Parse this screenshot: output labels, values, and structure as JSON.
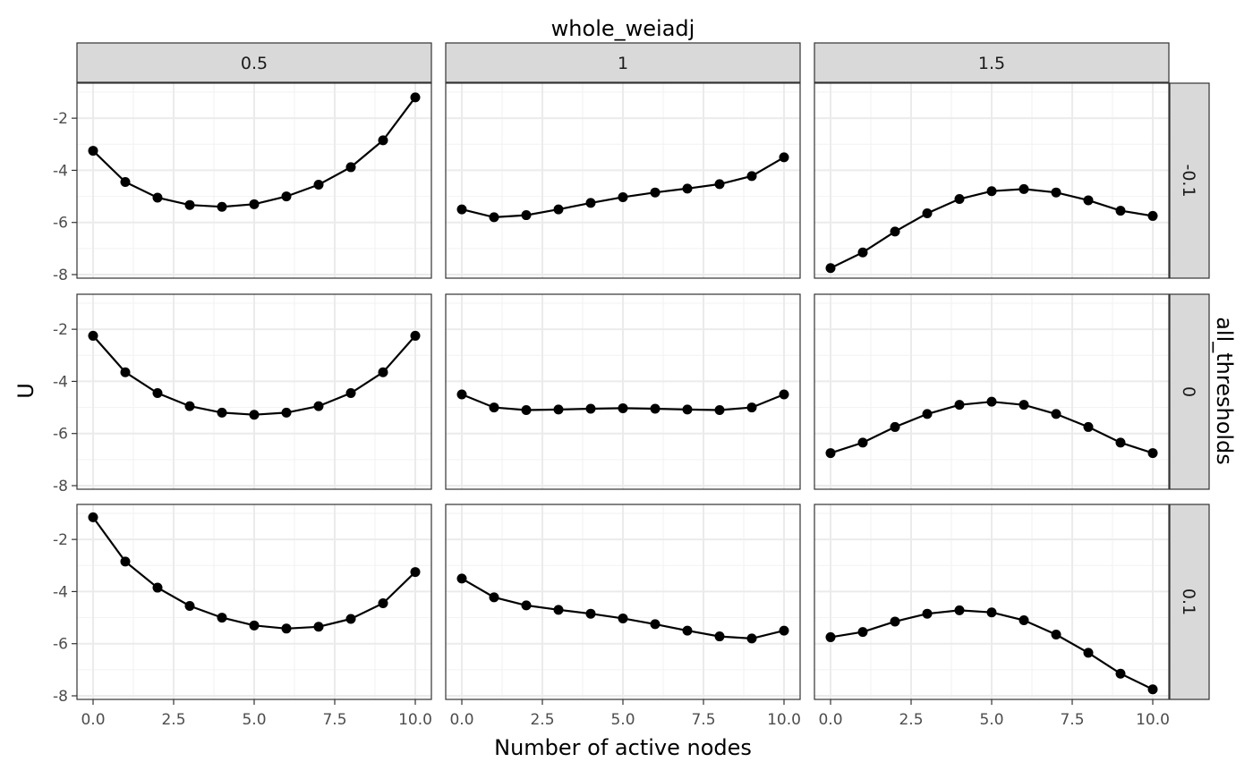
{
  "chart_data": {
    "type": "line",
    "facet_title_top": "whole_weiadj",
    "facet_title_right": "all_thresholds",
    "xlabel": "Number of active nodes",
    "ylabel": "U",
    "xlim": [
      0,
      10
    ],
    "ylim": [
      -8,
      -1
    ],
    "x_ticks": [
      0,
      2.5,
      5,
      7.5,
      10
    ],
    "x_tick_labels": [
      "0.0",
      "2.5",
      "5.0",
      "7.5",
      "10.0"
    ],
    "y_ticks": [
      -8,
      -6,
      -4,
      -2
    ],
    "y_tick_labels": [
      "-8",
      "-6",
      "-4",
      "-2"
    ],
    "grid": true,
    "columns": [
      "0.5",
      "1",
      "1.5"
    ],
    "rows": [
      "-0.1",
      "0",
      "0.1"
    ],
    "x": [
      0,
      1,
      2,
      3,
      4,
      5,
      6,
      7,
      8,
      9,
      10
    ],
    "panels": [
      {
        "row": "-0.1",
        "col": "0.5",
        "values": [
          -3.25,
          -4.45,
          -5.05,
          -5.33,
          -5.4,
          -5.3,
          -5.0,
          -4.55,
          -3.88,
          -2.85,
          -1.2
        ]
      },
      {
        "row": "-0.1",
        "col": "1",
        "values": [
          -5.5,
          -5.8,
          -5.72,
          -5.5,
          -5.25,
          -5.03,
          -4.85,
          -4.7,
          -4.53,
          -4.22,
          -3.5
        ]
      },
      {
        "row": "-0.1",
        "col": "1.5",
        "values": [
          -7.75,
          -7.15,
          -6.35,
          -5.65,
          -5.1,
          -4.8,
          -4.72,
          -4.85,
          -5.15,
          -5.55,
          -5.75
        ]
      },
      {
        "row": "0",
        "col": "0.5",
        "values": [
          -2.25,
          -3.65,
          -4.45,
          -4.95,
          -5.2,
          -5.28,
          -5.2,
          -4.95,
          -4.45,
          -3.65,
          -2.25
        ]
      },
      {
        "row": "0",
        "col": "1",
        "values": [
          -4.5,
          -5.0,
          -5.1,
          -5.08,
          -5.05,
          -5.03,
          -5.05,
          -5.08,
          -5.1,
          -5.0,
          -4.5
        ]
      },
      {
        "row": "0",
        "col": "1.5",
        "values": [
          -6.75,
          -6.35,
          -5.75,
          -5.25,
          -4.9,
          -4.78,
          -4.9,
          -5.25,
          -5.75,
          -6.35,
          -6.75
        ]
      },
      {
        "row": "0.1",
        "col": "0.5",
        "values": [
          -1.15,
          -2.85,
          -3.85,
          -4.55,
          -5.0,
          -5.3,
          -5.42,
          -5.35,
          -5.05,
          -4.45,
          -3.25
        ]
      },
      {
        "row": "0.1",
        "col": "1",
        "values": [
          -3.5,
          -4.22,
          -4.53,
          -4.7,
          -4.85,
          -5.03,
          -5.25,
          -5.5,
          -5.72,
          -5.8,
          -5.5
        ]
      },
      {
        "row": "0.1",
        "col": "1.5",
        "values": [
          -5.75,
          -5.55,
          -5.15,
          -4.85,
          -4.72,
          -4.8,
          -5.1,
          -5.65,
          -6.35,
          -7.15,
          -7.75
        ]
      }
    ]
  }
}
